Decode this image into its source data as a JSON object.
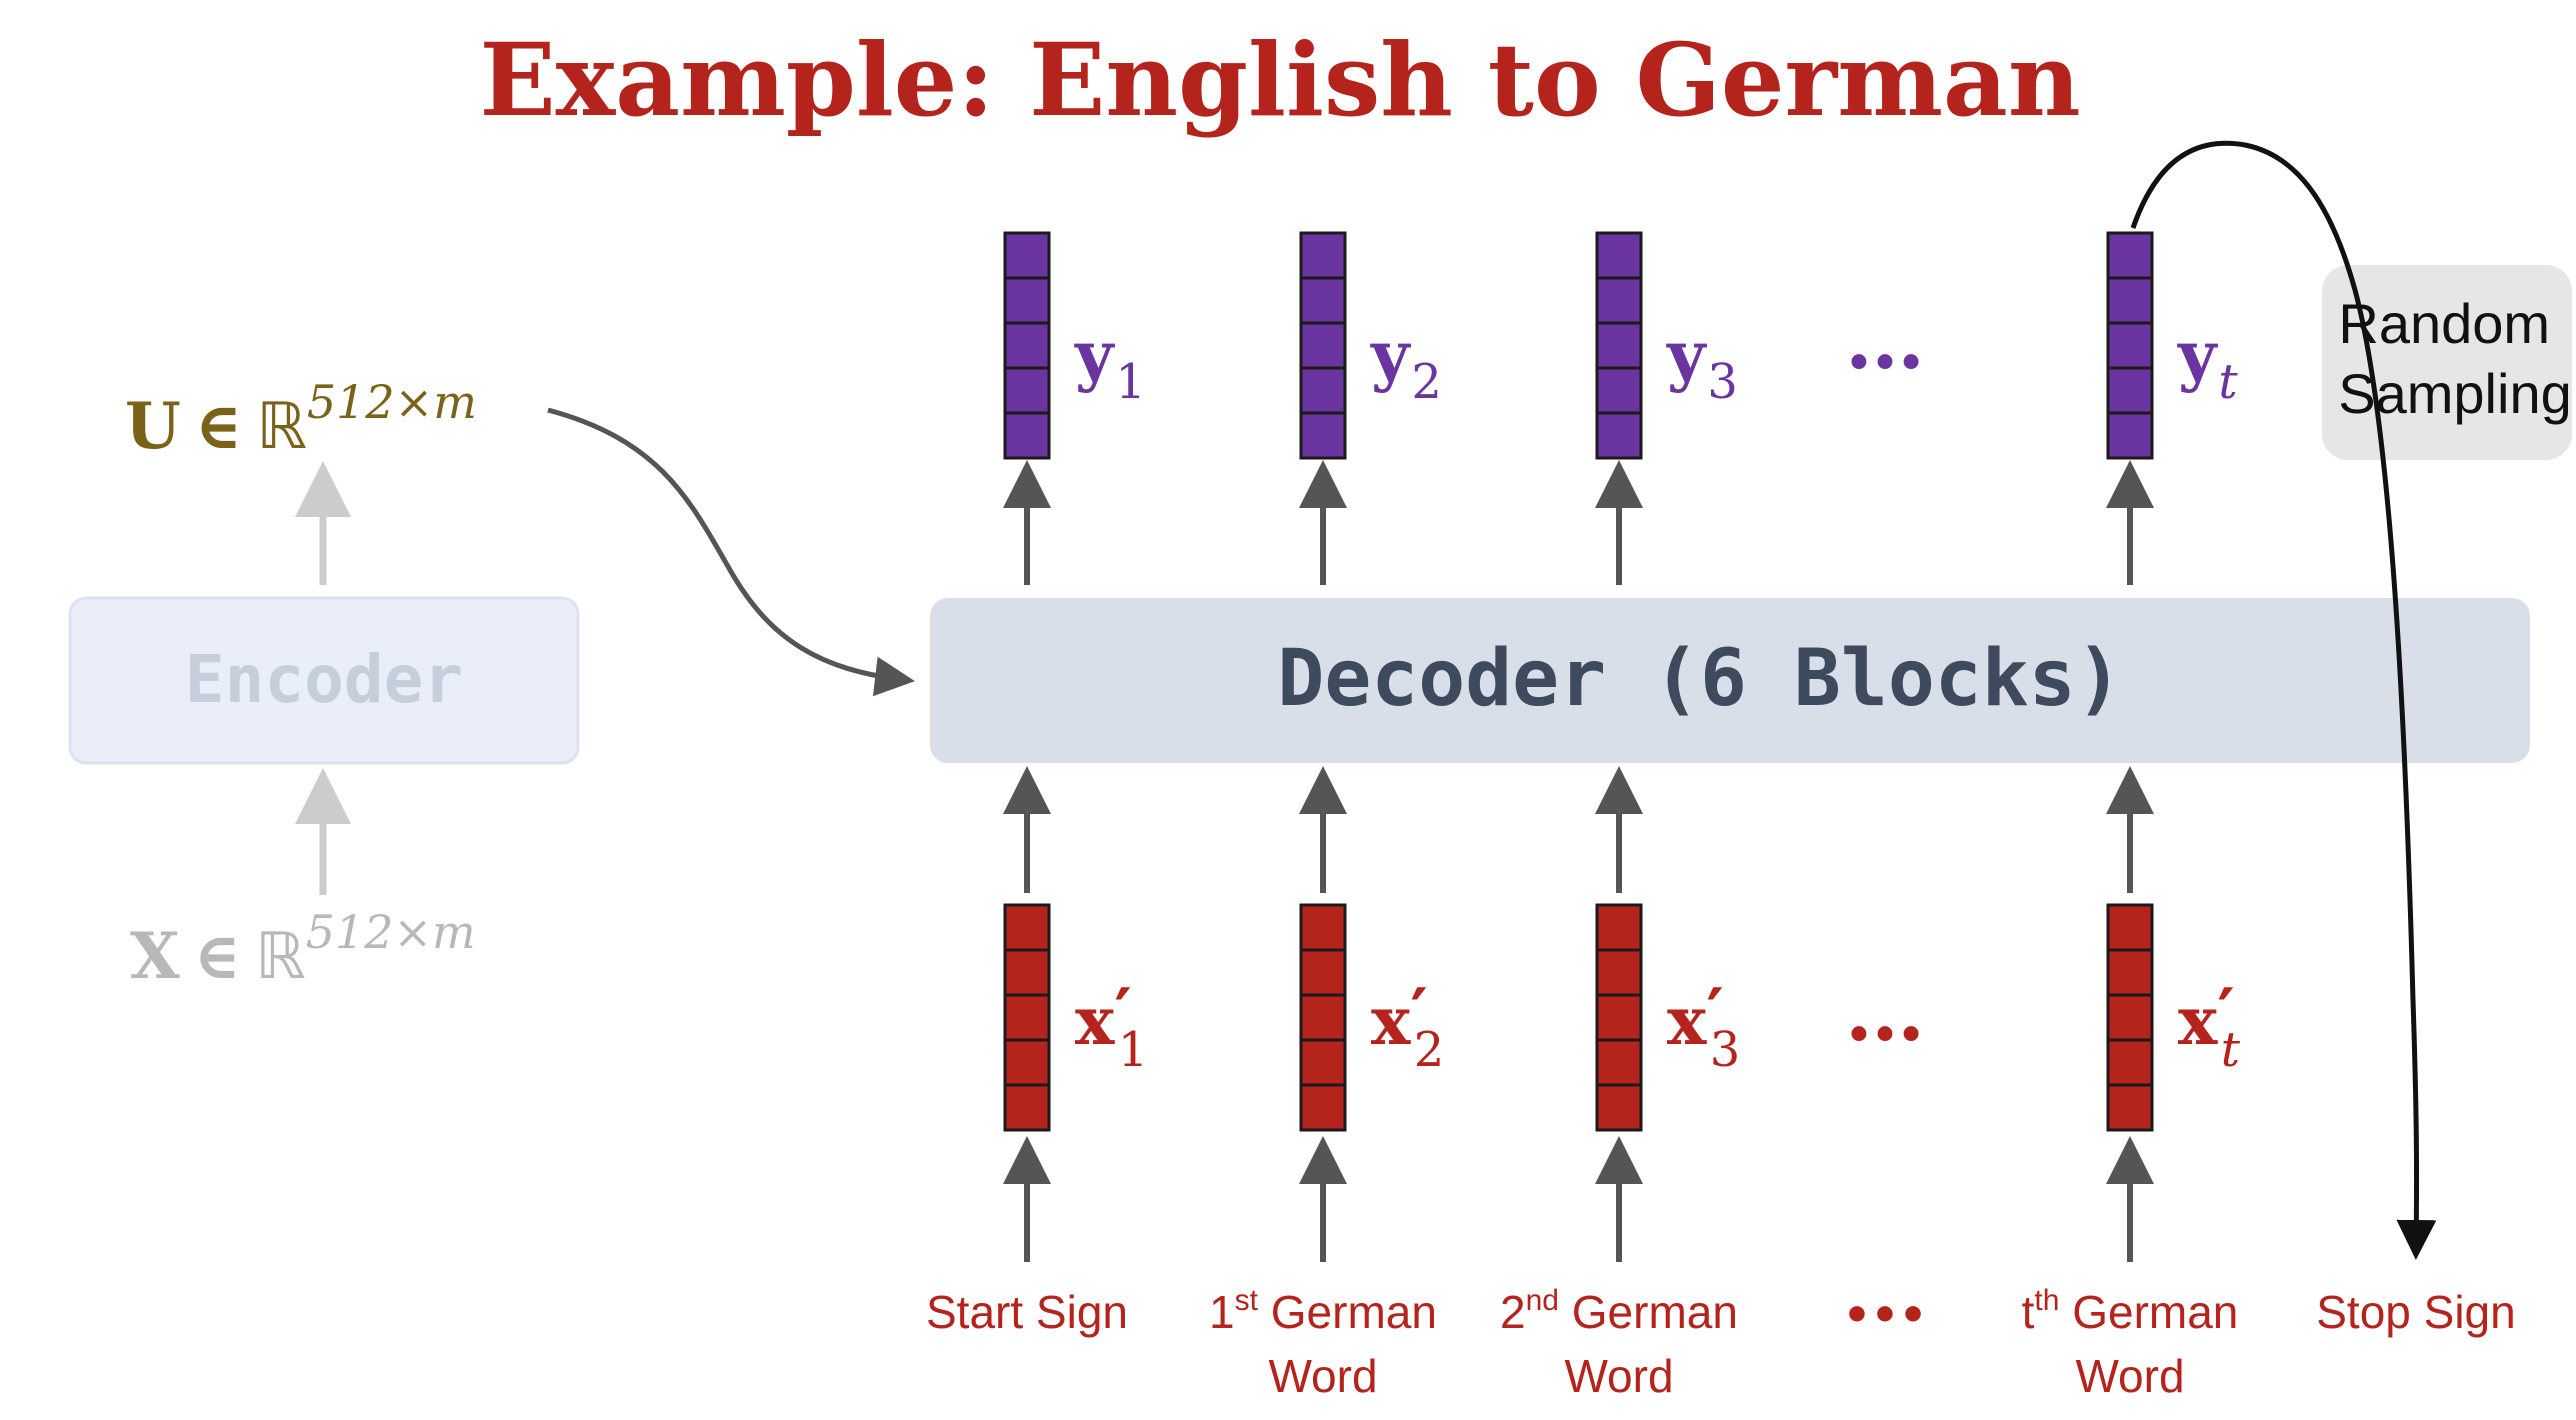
{
  "title": "Example: English to German",
  "encoder": {
    "label": "Encoder",
    "output_var": "U",
    "input_var": "X",
    "member_symbol": "∈",
    "space_symbol": "ℝ",
    "dims": "512×m"
  },
  "decoder": {
    "label": "Decoder (6 Blocks)"
  },
  "outputs": [
    {
      "var": "y",
      "sub": "1"
    },
    {
      "var": "y",
      "sub": "2"
    },
    {
      "var": "y",
      "sub": "3"
    },
    {
      "var": "y",
      "sub": "t",
      "sub_italic": true
    }
  ],
  "inputs": [
    {
      "var": "x",
      "prime": "′",
      "sub": "1"
    },
    {
      "var": "x",
      "prime": "′",
      "sub": "2"
    },
    {
      "var": "x",
      "prime": "′",
      "sub": "3"
    },
    {
      "var": "x",
      "prime": "′",
      "sub": "t",
      "sub_italic": true
    }
  ],
  "ellipsis": "…",
  "bottom_ellipsis": "•••",
  "token_labels": [
    {
      "line1": "Start Sign",
      "line2": ""
    },
    {
      "line1_pre": "1",
      "line1_sup": "st",
      "line1_post": " German",
      "line2": "Word"
    },
    {
      "line1_pre": "2",
      "line1_sup": "nd",
      "line1_post": " German",
      "line2": "Word"
    },
    {
      "line1_pre": "t",
      "line1_sup": "th",
      "line1_post": " German",
      "line2": "Word"
    },
    {
      "line1": "Stop Sign",
      "line2": ""
    }
  ],
  "sampling": {
    "line1": "Random",
    "line2": "Sampling"
  },
  "colors": {
    "title": "#b5241c",
    "output_vector": "#6a35a0",
    "input_vector": "#b5241c",
    "u_var": "#7a6218",
    "x_var_faded": "#b8b8b8",
    "decoder_box": "#d9dfe8",
    "decoder_text": "#3e4a5e",
    "encoder_box": "#e9eef8",
    "encoder_text": "#c5cedb",
    "arrow": "#555555"
  }
}
